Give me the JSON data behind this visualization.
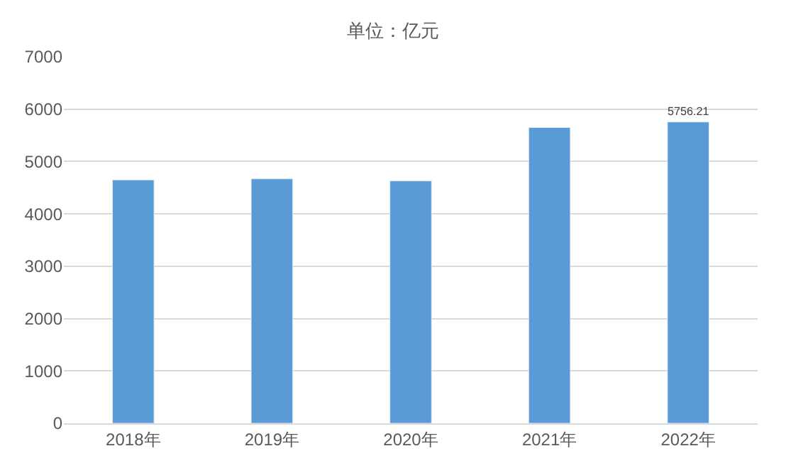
{
  "chart_data": {
    "type": "bar",
    "title": "单位：亿元",
    "categories": [
      "2018年",
      "2019年",
      "2020年",
      "2021年",
      "2022年"
    ],
    "values": [
      4650,
      4670,
      4630,
      5650,
      5756.21
    ],
    "value_labels": [
      null,
      null,
      null,
      null,
      "5756.21"
    ],
    "color": "#5b9bd5",
    "ylim": [
      0,
      7000
    ],
    "yticks": [
      0,
      1000,
      2000,
      3000,
      4000,
      5000,
      6000,
      7000
    ],
    "grid": "y",
    "legend": false
  }
}
